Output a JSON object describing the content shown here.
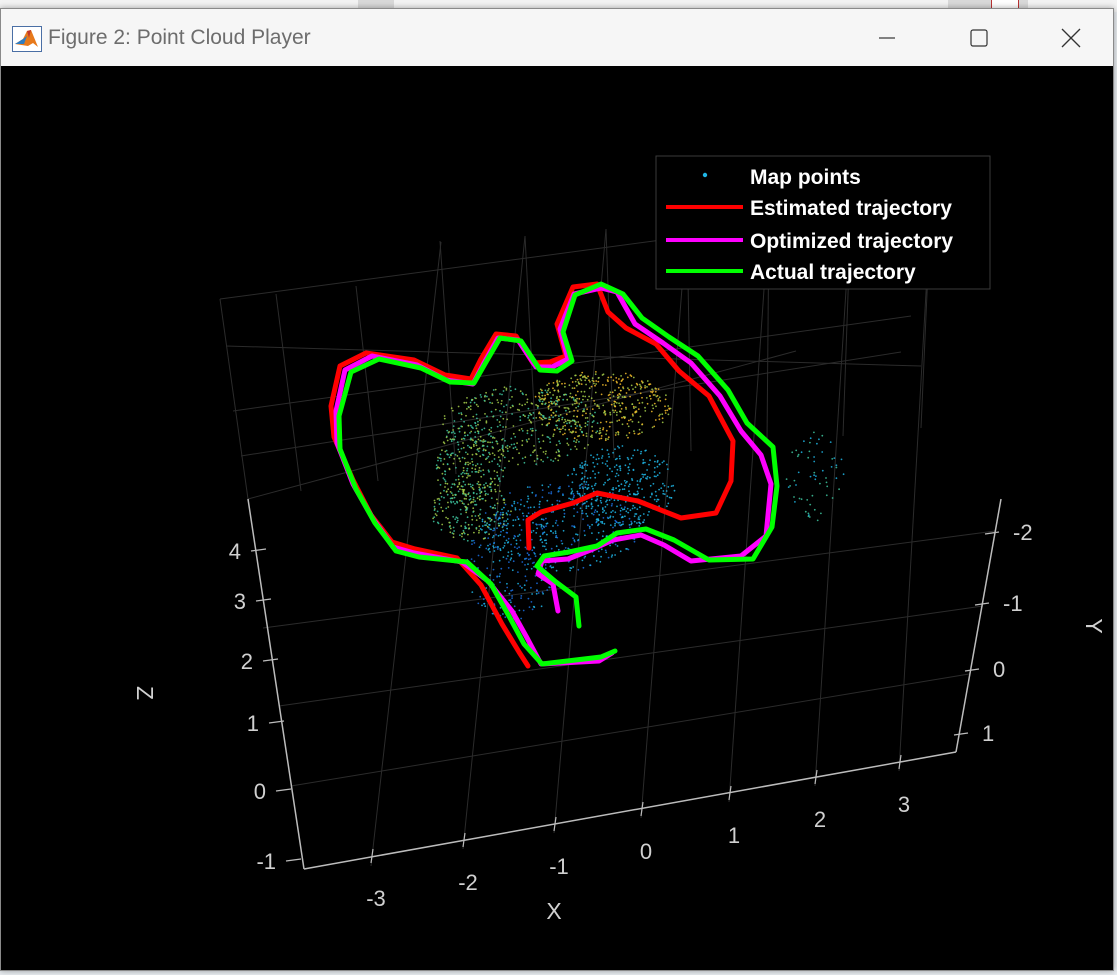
{
  "window": {
    "title": "Figure 2: Point Cloud Player",
    "background_color": "#000000"
  },
  "chart_data": {
    "type": "scatter",
    "dimensions": 3,
    "xlabel": "X",
    "ylabel": "Y",
    "zlabel": "Z",
    "x_ticks": [
      "-3",
      "-2",
      "-1",
      "0",
      "1",
      "2",
      "3"
    ],
    "y_ticks": [
      "-2",
      "-1",
      "0",
      "1"
    ],
    "z_ticks": [
      "-1",
      "0",
      "1",
      "2",
      "3",
      "4"
    ],
    "xlim": [
      -3.5,
      3.5
    ],
    "ylim": [
      1.5,
      -2.5
    ],
    "zlim": [
      -1,
      5
    ],
    "grid": true,
    "legend_position": "top-right",
    "legend": [
      {
        "label": "Map points",
        "color": "#1fb6e6",
        "marker": "point"
      },
      {
        "label": "Estimated trajectory",
        "color": "#ff0000",
        "marker": "line"
      },
      {
        "label": "Optimized trajectory",
        "color": "#ff00ff",
        "marker": "line"
      },
      {
        "label": "Actual trajectory",
        "color": "#00ff00",
        "marker": "line"
      }
    ],
    "series_colors": {
      "map_points_colormap": [
        "#1b6fe0",
        "#1fb6e6",
        "#3ec7a0",
        "#a6cf4a",
        "#f7c02a"
      ]
    }
  }
}
